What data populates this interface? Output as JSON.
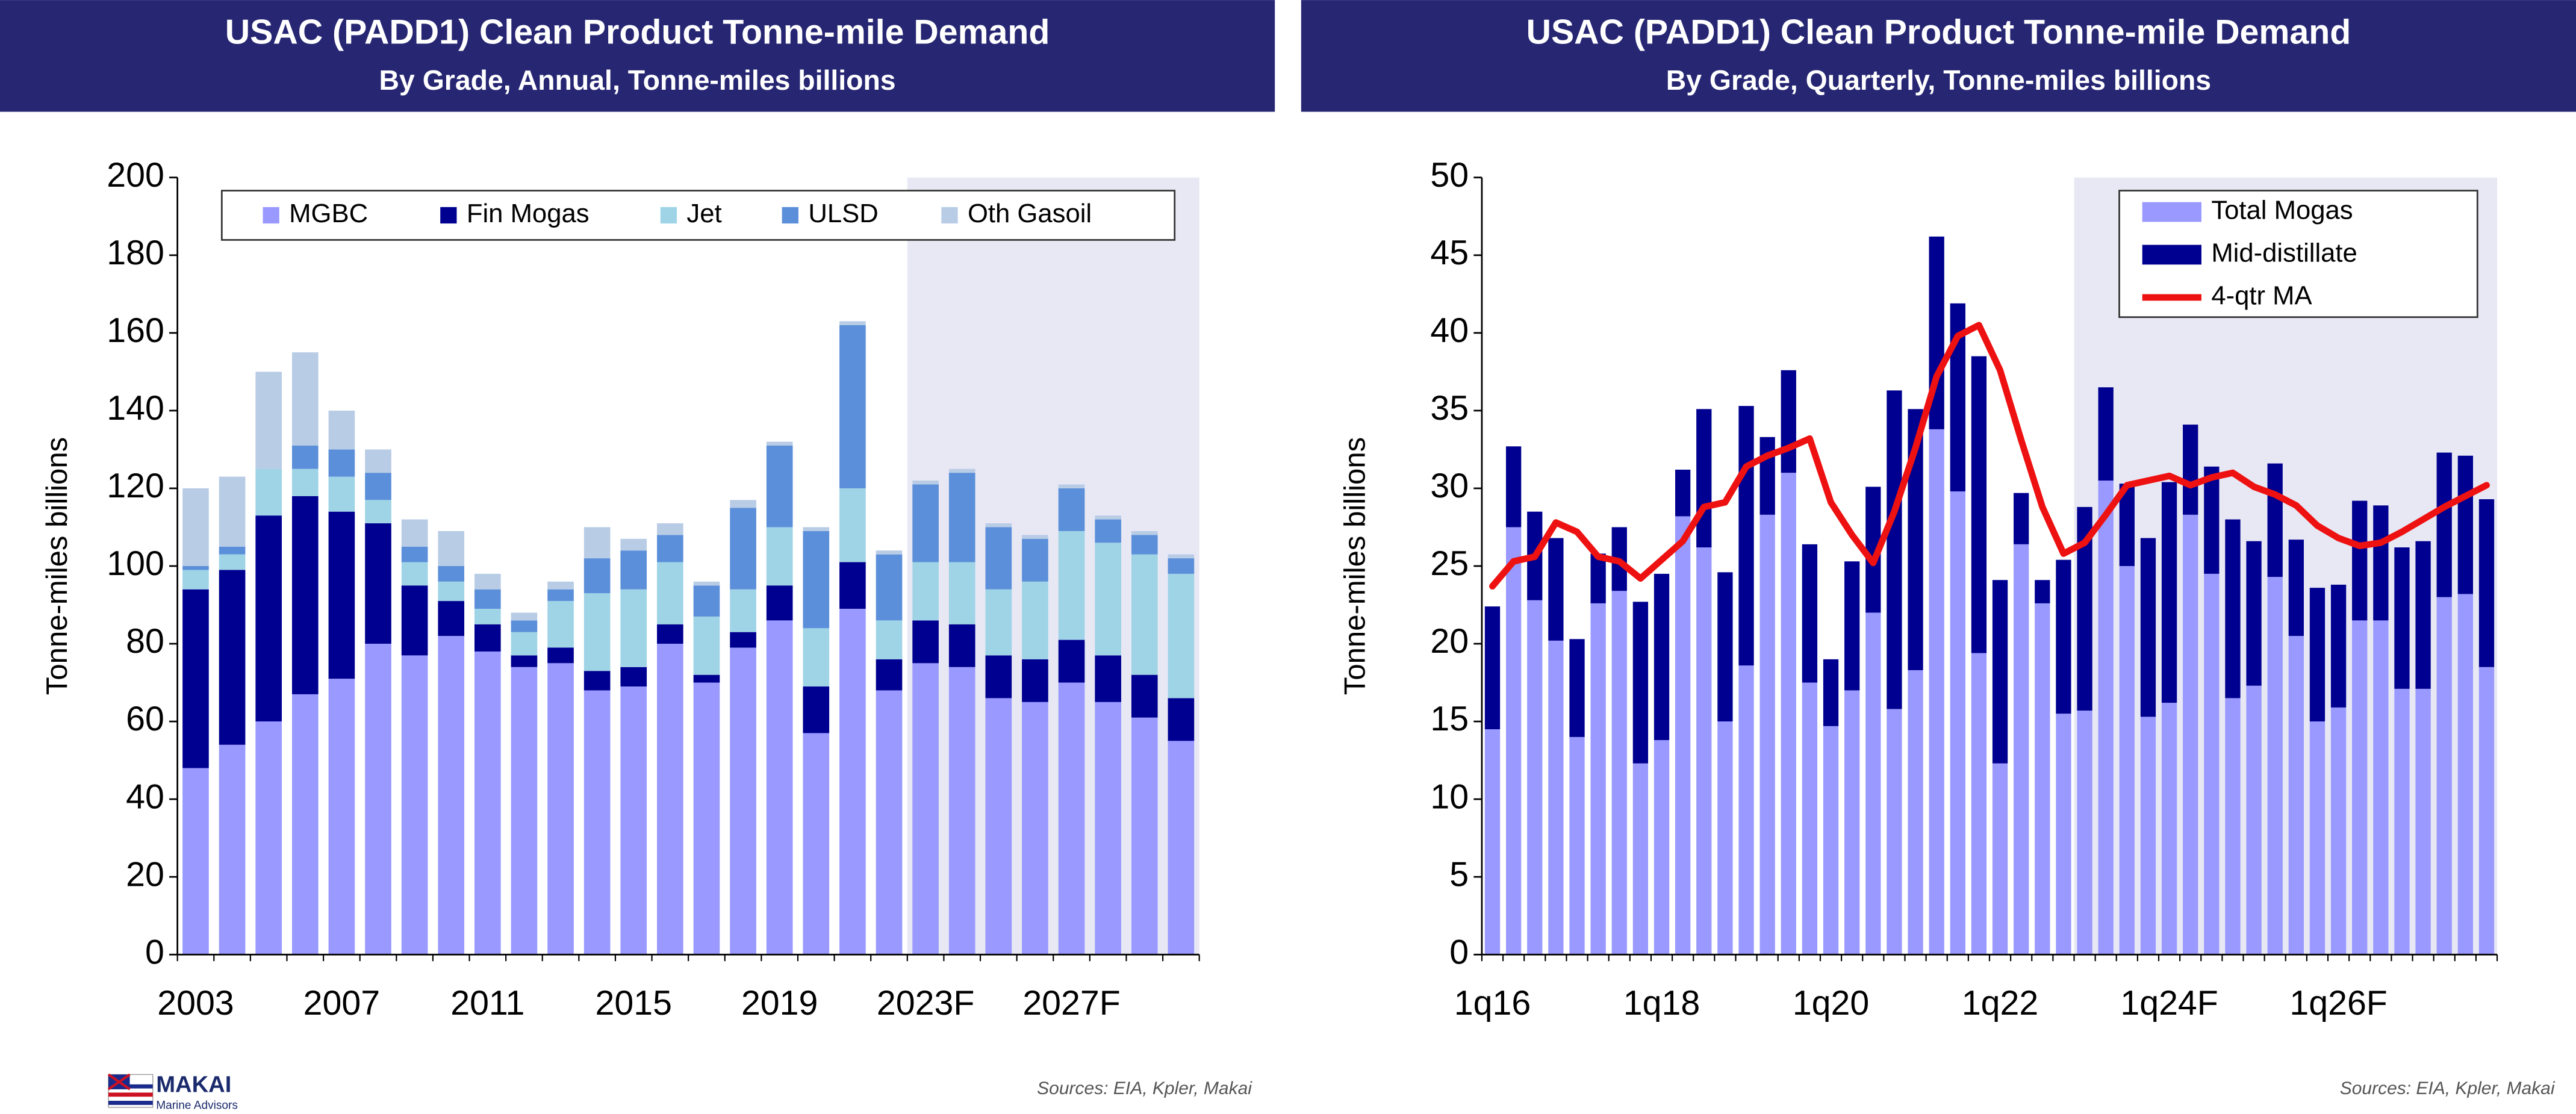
{
  "chart_data": [
    {
      "type": "bar",
      "stacked": true,
      "title": "USAC (PADD1) Clean Product Tonne-mile Demand",
      "subtitle": "By Grade, Annual, Tonne-miles billions",
      "ylabel": "Tonne-miles billions",
      "source": "Sources: EIA, Kpler, Makai",
      "categories": [
        "2003",
        null,
        null,
        null,
        "2007",
        null,
        null,
        null,
        "2011",
        null,
        null,
        null,
        "2015",
        null,
        null,
        null,
        "2019",
        null,
        null,
        null,
        "2023F",
        null,
        null,
        null,
        "2027F",
        null,
        null,
        null
      ],
      "series": [
        {
          "name": "MGBC",
          "color": "#9999ff",
          "values": [
            48,
            54,
            60,
            67,
            71,
            80,
            77,
            82,
            78,
            74,
            75,
            68,
            69,
            80,
            70,
            79,
            86,
            57,
            89,
            68,
            75,
            74,
            66,
            65,
            70,
            65,
            61,
            55
          ]
        },
        {
          "name": "Fin Mogas",
          "color": "#000090",
          "values": [
            46,
            45,
            53,
            51,
            43,
            31,
            18,
            9,
            7,
            3,
            4,
            5,
            5,
            5,
            2,
            4,
            9,
            12,
            12,
            8,
            11,
            11,
            11,
            11,
            11,
            12,
            11,
            11
          ]
        },
        {
          "name": "Jet",
          "color": "#9fd3e6",
          "values": [
            5,
            4,
            12,
            7,
            9,
            6,
            6,
            5,
            4,
            6,
            12,
            20,
            20,
            16,
            15,
            11,
            15,
            15,
            19,
            10,
            15,
            16,
            17,
            20,
            28,
            29,
            31,
            32
          ]
        },
        {
          "name": "ULSD",
          "color": "#5b8fd9",
          "values": [
            1,
            2,
            0,
            6,
            7,
            7,
            4,
            4,
            5,
            3,
            3,
            9,
            10,
            7,
            8,
            21,
            21,
            25,
            42,
            17,
            20,
            23,
            16,
            11,
            11,
            6,
            5,
            4
          ]
        },
        {
          "name": "Oth Gasoil",
          "color": "#b9cce6",
          "values": [
            20,
            18,
            25,
            24,
            10,
            6,
            7,
            9,
            4,
            2,
            2,
            8,
            3,
            3,
            1,
            2,
            1,
            1,
            1,
            1,
            1,
            1,
            1,
            1,
            1,
            1,
            1,
            1
          ]
        }
      ],
      "ylim": [
        0,
        200
      ],
      "yticks": [
        0,
        20,
        40,
        60,
        80,
        100,
        120,
        140,
        160,
        180,
        200
      ],
      "forecast_shading_from": 20,
      "legend": "top"
    },
    {
      "type": "bar",
      "stacked": true,
      "title": "USAC (PADD1) Clean Product Tonne-mile Demand",
      "subtitle": "By Grade, Quarterly, Tonne-miles billions",
      "ylabel": "Tonne-miles billions",
      "source": "Sources: EIA, Kpler, Makai",
      "categories": [
        "1q16",
        null,
        null,
        null,
        null,
        null,
        null,
        null,
        "1q18",
        null,
        null,
        null,
        null,
        null,
        null,
        null,
        "1q20",
        null,
        null,
        null,
        null,
        null,
        null,
        null,
        "1q22",
        null,
        null,
        null,
        null,
        null,
        null,
        null,
        "1q24F",
        null,
        null,
        null,
        null,
        null,
        null,
        null,
        "1q26F",
        null,
        null,
        null,
        null,
        null,
        null,
        null
      ],
      "series": [
        {
          "name": "Total Mogas",
          "color": "#9999ff",
          "values": [
            14.5,
            27.5,
            22.8,
            20.2,
            14,
            22.6,
            23.4,
            12.3,
            13.8,
            28.2,
            26.2,
            15,
            18.6,
            28.3,
            31,
            17.5,
            14.7,
            17,
            22,
            15.8,
            18.3,
            33.8,
            29.8,
            19.4,
            12.3,
            26.4,
            22.6,
            15.5,
            15.7,
            30.5,
            25,
            15.3,
            16.2,
            28.3,
            24.5,
            16.5,
            17.3,
            24.3,
            20.5,
            15,
            15.9,
            21.5,
            21.5,
            17.1,
            17.1,
            23,
            23.2,
            18.5
          ]
        },
        {
          "name": "Mid-distillate",
          "color": "#000090",
          "values": [
            7.9,
            5.2,
            5.7,
            6.6,
            6.3,
            3.2,
            4.1,
            10.4,
            10.7,
            3,
            8.9,
            9.6,
            16.7,
            5,
            6.6,
            8.9,
            4.3,
            8.3,
            8.1,
            20.5,
            16.8,
            12.4,
            12.1,
            19.1,
            11.8,
            3.3,
            1.5,
            9.9,
            13.1,
            6,
            5.3,
            11.5,
            14.2,
            5.8,
            6.9,
            11.5,
            9.3,
            7.3,
            6.2,
            8.6,
            7.9,
            7.7,
            7.4,
            9.1,
            9.5,
            9.3,
            8.9,
            10.8
          ]
        },
        {
          "name": "4-qtr MA",
          "type": "line",
          "color": "#ee1111",
          "values": [
            23.7,
            25.3,
            25.6,
            27.8,
            27.2,
            25.6,
            25.3,
            24.2,
            25.4,
            26.6,
            28.8,
            29.1,
            31.4,
            32.1,
            32.6,
            33.2,
            29.1,
            27,
            25.2,
            28.5,
            32.6,
            37.2,
            39.8,
            40.5,
            37.6,
            33.1,
            28.8,
            25.8,
            26.5,
            28.3,
            30.2,
            30.5,
            30.8,
            30.2,
            30.7,
            31,
            30.1,
            29.6,
            28.9,
            27.6,
            26.8,
            26.3,
            26.5,
            27.2,
            28,
            28.8,
            29.5,
            30.2
          ]
        }
      ],
      "ylim": [
        0,
        50
      ],
      "yticks": [
        0,
        5,
        10,
        15,
        20,
        25,
        30,
        35,
        40,
        45,
        50
      ],
      "forecast_shading_from": 28,
      "legend": "upper right"
    }
  ],
  "logo": {
    "name": "MAKAI",
    "tagline": "Marine Advisors"
  }
}
